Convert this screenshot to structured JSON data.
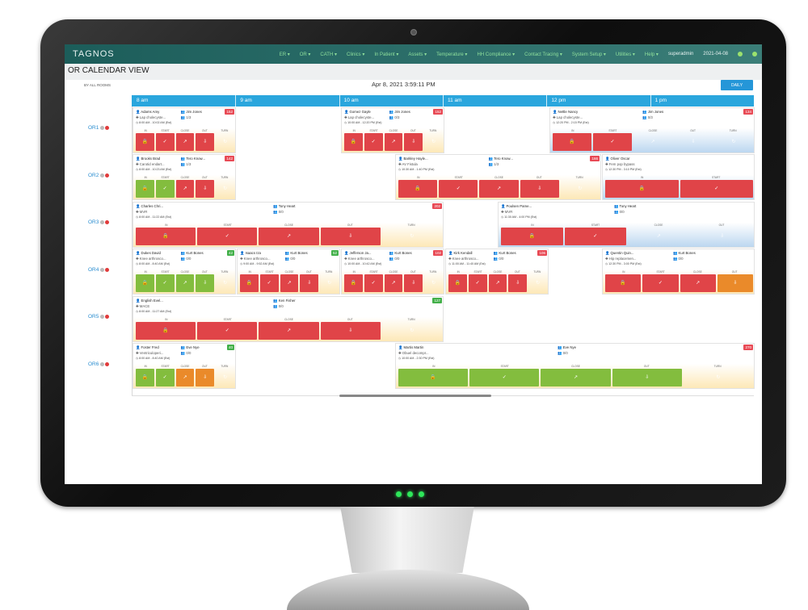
{
  "app": {
    "logo": "TAGNOS",
    "menus": [
      "ER ▾",
      "OR ▾",
      "CATH ▾",
      "Clinics ▾",
      "In Patient ▾",
      "Assets ▾",
      "Temperature ▾",
      "HH Compliance ▾",
      "Contact Tracing ▾",
      "System Setup ▾",
      "Utilities ▾",
      "Help ▾"
    ],
    "user": "superadmin",
    "date": "2021-04-08"
  },
  "page": {
    "title": "OR CALENDAR VIEW",
    "filter": "BY ALL ROOMS",
    "datetime": "Apr 8, 2021 3:59:11 PM",
    "daily_button": "DAILY"
  },
  "hours": [
    "8 am",
    "9 am",
    "10 am",
    "11 am",
    "12 pm",
    "1 pm"
  ],
  "rooms": [
    "OR1",
    "OR2",
    "OR3",
    "OR4",
    "OR5",
    "OR6"
  ],
  "colors": {
    "red": "#e04448",
    "green": "#83bd3e",
    "orange": "#ea8a2a",
    "header": "#2aa6dd",
    "topbar": "#1c5d5a"
  },
  "cases": [
    {
      "room": 0,
      "patient": "Adams Amy",
      "surgeon": "Jim Jones",
      "procedure": "Lap cholecyste...",
      "room_no": "1/3",
      "time": "8:00 AM - 10:02 AM (Est)",
      "badge": "152",
      "badge_color": "red",
      "bg": "orange",
      "steps": [
        "red",
        "red",
        "red",
        "red",
        "empty"
      ]
    },
    {
      "room": 0,
      "patient": "Gomez Gayle",
      "surgeon": "Jim Jones",
      "procedure": "Lap cholecyste...",
      "room_no": "0/3",
      "time": "10:00 AM - 12:20 PM (Est)",
      "badge": "152",
      "badge_color": "red",
      "bg": "orange",
      "steps": [
        "red",
        "red",
        "red",
        "red",
        "empty"
      ]
    },
    {
      "room": 0,
      "patient": "Nettle Nancy",
      "surgeon": "Jim Jones",
      "procedure": "Lap cholecyste...",
      "room_no": "0/3",
      "time": "12:20 PM - 2:15 PM (Est)",
      "badge": "134",
      "badge_color": "red",
      "bg": "blue",
      "steps": [
        "red",
        "red",
        "empty",
        "empty",
        "empty"
      ]
    },
    {
      "room": 1,
      "patient": "Brooks Brad",
      "surgeon": "Tero Know...",
      "procedure": "Carotid endart...",
      "room_no": "1/3",
      "time": "8:00 AM - 10:23 AM (Est)",
      "badge": "142",
      "badge_color": "red",
      "bg": "orange",
      "steps": [
        "green",
        "green",
        "red",
        "red",
        "empty"
      ]
    },
    {
      "room": 1,
      "patient": "Barkley Hayle...",
      "surgeon": "Tero Know...",
      "procedure": "AV Fistula",
      "room_no": "1/3",
      "time": "10:30 AM - 1:40 PM (Est)",
      "badge": "166",
      "badge_color": "red",
      "bg": "orange",
      "steps": [
        "red",
        "red",
        "red",
        "red",
        "empty"
      ]
    },
    {
      "room": 1,
      "patient": "Oliver Oscar",
      "surgeon": "",
      "procedure": "Fem pop bypass",
      "room_no": "",
      "time": "12:30 PM - 3:10 PM (Est)",
      "badge": "",
      "badge_color": "red",
      "bg": "blue",
      "steps": [
        "red",
        "red"
      ]
    },
    {
      "room": 2,
      "patient": "Charles Chri...",
      "surgeon": "Tony Heart",
      "procedure": "MVR",
      "room_no": "0/0",
      "time": "8:00 AM - 11:22 AM (Est)",
      "badge": "202",
      "badge_color": "red",
      "bg": "orange",
      "steps": [
        "red",
        "red",
        "red",
        "red",
        "empty"
      ]
    },
    {
      "room": 2,
      "patient": "Poulsen Pame...",
      "surgeon": "Tony Heart",
      "procedure": "MVR",
      "room_no": "0/0",
      "time": "11:30 AM - 4:00 PM (Est)",
      "badge": "",
      "badge_color": "red",
      "bg": "blue",
      "steps": [
        "red",
        "red",
        "empty",
        "empty"
      ]
    },
    {
      "room": 3,
      "patient": "Dukes David",
      "surgeon": "Kurt Bones",
      "procedure": "Knee arthrosco...",
      "room_no": "0/0",
      "time": "8:00 AM - 8:40 AM (Est)",
      "badge": "42",
      "badge_color": "green",
      "bg": "orange",
      "steps": [
        "green",
        "green",
        "green",
        "green",
        "empty"
      ]
    },
    {
      "room": 3,
      "patient": "Isaacs Iza",
      "surgeon": "Kurt Bones",
      "procedure": "Knee arthrosco...",
      "room_no": "0/0",
      "time": "9:00 AM - 9:52 AM (Est)",
      "badge": "52",
      "badge_color": "green",
      "bg": "orange",
      "steps": [
        "red",
        "red",
        "red",
        "red",
        "empty"
      ]
    },
    {
      "room": 3,
      "patient": "Jefferson Ja...",
      "surgeon": "Kurt Bones",
      "procedure": "Knee arthrosco...",
      "room_no": "0/0",
      "time": "10:00 AM - 10:42 AM (Est)",
      "badge": "102",
      "badge_color": "red",
      "bg": "orange",
      "steps": [
        "red",
        "red",
        "red",
        "red",
        "empty"
      ]
    },
    {
      "room": 3,
      "patient": "Kirk Kendall",
      "surgeon": "Kurt Bones",
      "procedure": "Knee arthrosco...",
      "room_no": "0/0",
      "time": "11:00 AM - 11:40 AM (Est)",
      "badge": "106",
      "badge_color": "red",
      "bg": "orange",
      "steps": [
        "red",
        "red",
        "red",
        "red",
        "empty"
      ]
    },
    {
      "room": 3,
      "patient": "Quentin Quin...",
      "surgeon": "Kurt Bones",
      "procedure": "Hip replacemen...",
      "room_no": "0/0",
      "time": "12:30 PM - 3:00 PM (Est)",
      "badge": "",
      "badge_color": "red",
      "bg": "orange",
      "steps": [
        "red",
        "red",
        "red",
        "orange"
      ]
    },
    {
      "room": 4,
      "patient": "English Evel...",
      "surgeon": "Ken Fisher",
      "procedure": "MACE",
      "room_no": "0/0",
      "time": "8:00 AM - 11:27 AM (Est)",
      "badge": "127",
      "badge_color": "green",
      "bg": "orange",
      "steps": [
        "red",
        "red",
        "red",
        "red",
        "empty"
      ]
    },
    {
      "room": 5,
      "patient": "Foster Fred",
      "surgeon": "Eve Nye",
      "procedure": "Ventriculoperi...",
      "room_no": "0/0",
      "time": "8:00 AM - 8:40 AM (Est)",
      "badge": "40",
      "badge_color": "green",
      "bg": "orange",
      "steps": [
        "green",
        "green",
        "orange",
        "orange",
        "empty"
      ]
    },
    {
      "room": 5,
      "patient": "Martis Martin",
      "surgeon": "Eve Nye",
      "procedure": "Obuel decompr...",
      "room_no": "0/0",
      "time": "10:00 AM - 2:30 PM (Est)",
      "badge": "270",
      "badge_color": "red",
      "bg": "orange",
      "steps": [
        "green",
        "green",
        "green",
        "green",
        "empty"
      ]
    }
  ]
}
